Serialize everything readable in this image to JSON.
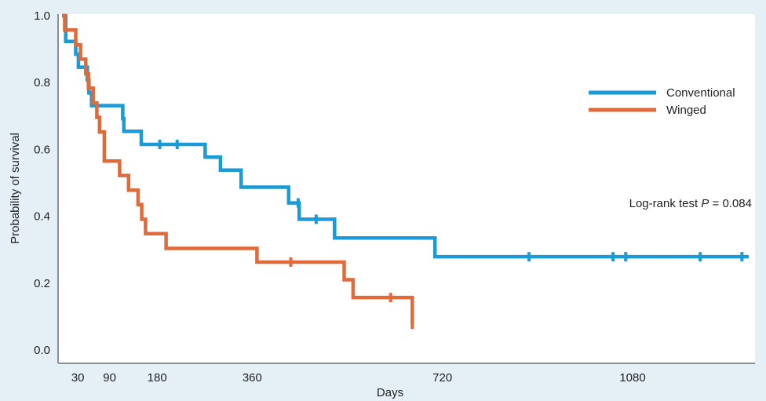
{
  "chart_data": {
    "type": "line",
    "step": true,
    "title": "",
    "xlabel": "Days",
    "ylabel": "Probability of survival",
    "xlim": [
      0,
      1300
    ],
    "ylim": [
      0,
      1.0
    ],
    "x_ticks": [
      30,
      90,
      180,
      360,
      720,
      1080
    ],
    "x_tick_labels": [
      "30",
      "90",
      "180",
      "360",
      "720",
      "1080"
    ],
    "y_ticks": [
      0.0,
      0.2,
      0.4,
      0.6,
      0.8,
      1.0
    ],
    "y_tick_labels": [
      "0.0",
      "0.2",
      "0.4",
      "0.6",
      "0.8",
      "1.0"
    ],
    "grid": false,
    "legend_position": "top-right",
    "annotation": {
      "prefix": "Log-rank test ",
      "italic": "P",
      "suffix": " = 0.084"
    },
    "series": [
      {
        "name": "Conventional",
        "color": "#1a9ad6",
        "points": [
          [
            0,
            1.0
          ],
          [
            7,
            0.923
          ],
          [
            26,
            0.885
          ],
          [
            31,
            0.846
          ],
          [
            48,
            0.808
          ],
          [
            51,
            0.769
          ],
          [
            56,
            0.731
          ],
          [
            115,
            0.692
          ],
          [
            117,
            0.654
          ],
          [
            150,
            0.615
          ],
          [
            271,
            0.577
          ],
          [
            300,
            0.538
          ],
          [
            339,
            0.487
          ],
          [
            429,
            0.44
          ],
          [
            449,
            0.391
          ],
          [
            516,
            0.335
          ],
          [
            706,
            0.279
          ],
          [
            1300,
            0.279
          ]
        ],
        "censored": [
          [
            185,
            0.615
          ],
          [
            218,
            0.615
          ],
          [
            447,
            0.44
          ],
          [
            481,
            0.391
          ],
          [
            884,
            0.279
          ],
          [
            1043,
            0.279
          ],
          [
            1067,
            0.279
          ],
          [
            1208,
            0.279
          ],
          [
            1287,
            0.279
          ]
        ]
      },
      {
        "name": "Winged",
        "color": "#e06a3a",
        "points": [
          [
            0,
            1.0
          ],
          [
            5,
            0.957
          ],
          [
            26,
            0.913
          ],
          [
            35,
            0.87
          ],
          [
            45,
            0.826
          ],
          [
            50,
            0.783
          ],
          [
            59,
            0.739
          ],
          [
            66,
            0.696
          ],
          [
            71,
            0.652
          ],
          [
            80,
            0.565
          ],
          [
            109,
            0.522
          ],
          [
            126,
            0.478
          ],
          [
            144,
            0.435
          ],
          [
            151,
            0.391
          ],
          [
            158,
            0.348
          ],
          [
            197,
            0.304
          ],
          [
            369,
            0.263
          ],
          [
            534,
            0.21
          ],
          [
            551,
            0.157
          ],
          [
            636,
            0.157
          ],
          [
            663,
            0.077
          ]
        ],
        "censored": [
          [
            433,
            0.263
          ],
          [
            622,
            0.157
          ],
          [
            663,
            0.077
          ]
        ]
      }
    ]
  }
}
